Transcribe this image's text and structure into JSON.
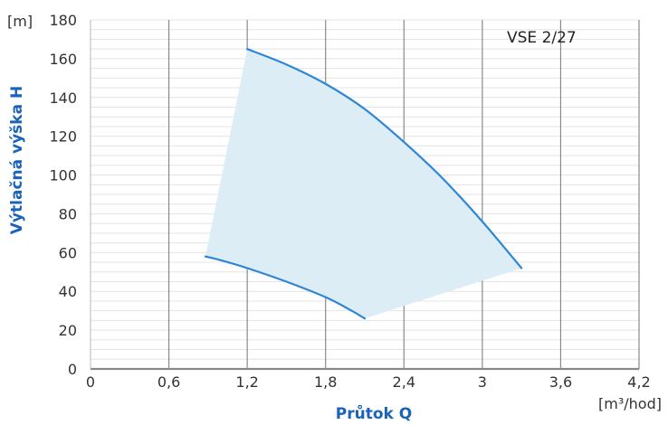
{
  "chart_data": {
    "type": "area",
    "title": "VSE 2/27",
    "xlabel": "Průtok Q",
    "ylabel": "Výtlačná výška H",
    "x_unit": "[m³/hod]",
    "y_unit": "[m]",
    "xlim": [
      0,
      4.2
    ],
    "ylim": [
      0,
      180
    ],
    "x_ticks": [
      {
        "value": 0,
        "label": "0"
      },
      {
        "value": 0.6,
        "label": "0,6"
      },
      {
        "value": 1.2,
        "label": "1,2"
      },
      {
        "value": 1.8,
        "label": "1,8"
      },
      {
        "value": 2.4,
        "label": "2,4"
      },
      {
        "value": 3.0,
        "label": "3"
      },
      {
        "value": 3.6,
        "label": "3,6"
      },
      {
        "value": 4.2,
        "label": "4,2"
      }
    ],
    "y_ticks": [
      {
        "value": 0,
        "label": "0"
      },
      {
        "value": 20,
        "label": "20"
      },
      {
        "value": 40,
        "label": "40"
      },
      {
        "value": 60,
        "label": "60"
      },
      {
        "value": 80,
        "label": "80"
      },
      {
        "value": 100,
        "label": "100"
      },
      {
        "value": 120,
        "label": "120"
      },
      {
        "value": 140,
        "label": "140"
      },
      {
        "value": 160,
        "label": "160"
      },
      {
        "value": 180,
        "label": "180"
      }
    ],
    "grid": {
      "vertical_major": true,
      "horizontal_minor_step": 5
    },
    "series": [
      {
        "role": "upper-curve",
        "points": [
          [
            1.2,
            165
          ],
          [
            1.5,
            157
          ],
          [
            1.8,
            147
          ],
          [
            2.1,
            134
          ],
          [
            2.4,
            117
          ],
          [
            2.7,
            98
          ],
          [
            3.0,
            76
          ],
          [
            3.3,
            52
          ]
        ]
      },
      {
        "role": "lower-curve",
        "points": [
          [
            0.88,
            58
          ],
          [
            1.0,
            56
          ],
          [
            1.2,
            52
          ],
          [
            1.5,
            45
          ],
          [
            1.8,
            37
          ],
          [
            2.0,
            30
          ],
          [
            2.1,
            26
          ]
        ]
      }
    ],
    "colors": {
      "curve": "#2e86d6",
      "fill": "#dcedf5",
      "axis_title": "#1a63b8",
      "grid_major": "#8a8a8a",
      "grid_minor": "#e4e4e4",
      "axis": "#888888"
    }
  }
}
